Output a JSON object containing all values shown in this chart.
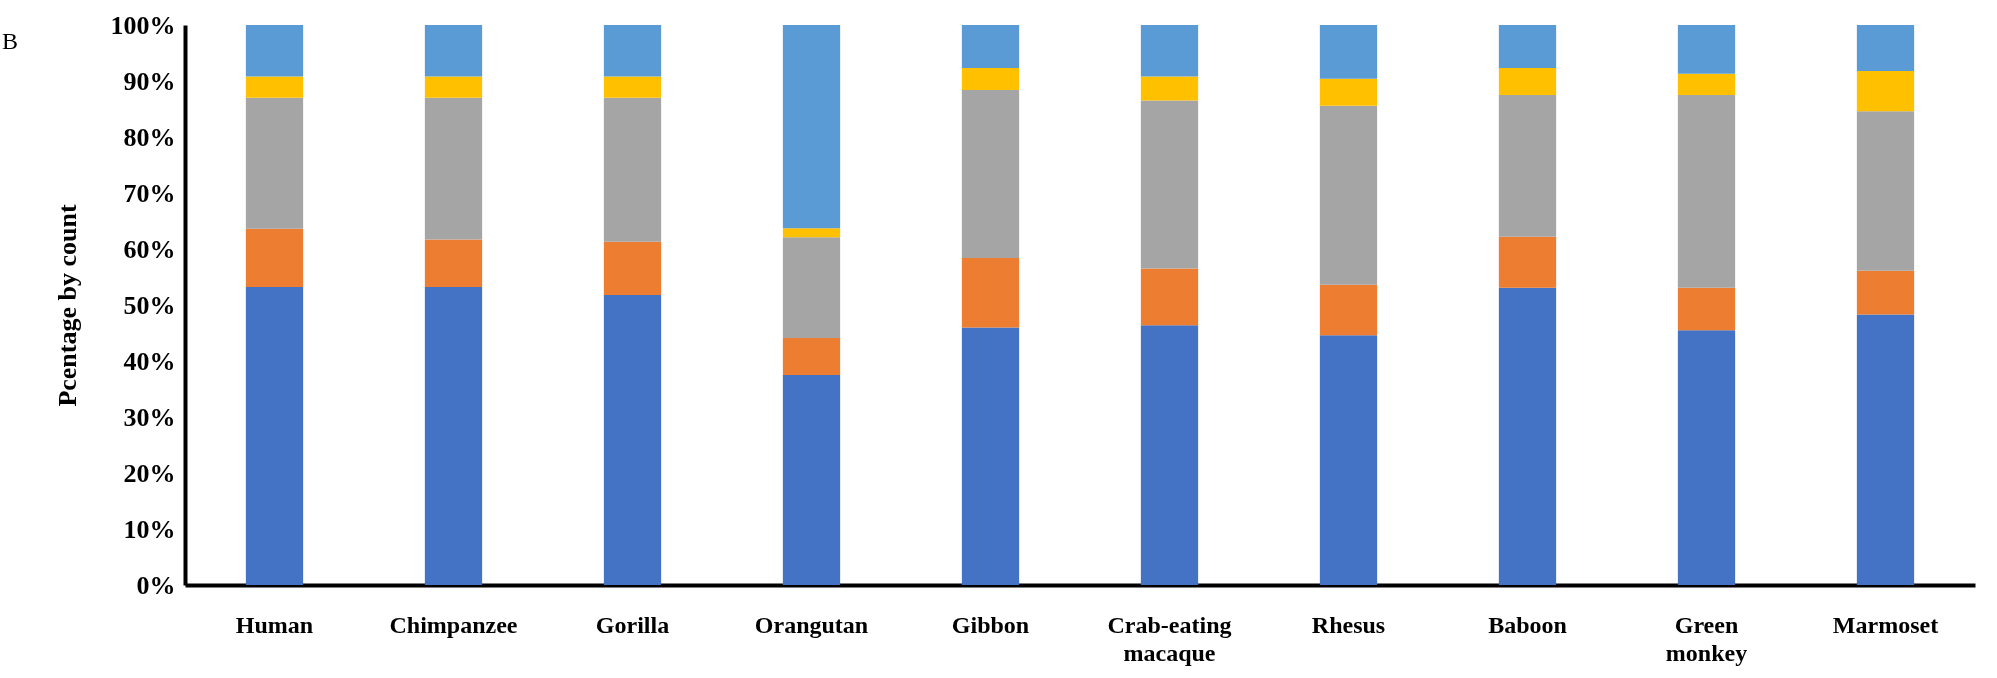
{
  "chart_data": {
    "type": "bar",
    "stacked": true,
    "ylabel": "Pcentage by count",
    "annotations": [
      "B"
    ],
    "categories": [
      "Human",
      "Chimpanzee",
      "Gorilla",
      "Orangutan",
      "Gibbon",
      "Crab-eating macaque",
      "Rhesus",
      "Baboon",
      "Green monkey",
      "Marmoset"
    ],
    "series": [
      {
        "color": "#4472c4",
        "values": [
          53.2,
          53.2,
          51.8,
          37.5,
          46.0,
          46.4,
          44.6,
          53.1,
          45.5,
          48.3
        ]
      },
      {
        "color": "#ed7d31",
        "values": [
          10.4,
          8.5,
          9.5,
          6.6,
          12.4,
          10.1,
          9.0,
          9.1,
          7.6,
          7.8
        ]
      },
      {
        "color": "#a5a5a5",
        "values": [
          23.4,
          25.3,
          25.7,
          18.0,
          30.0,
          30.0,
          32.0,
          25.3,
          34.4,
          28.5
        ]
      },
      {
        "color": "#ffc000",
        "values": [
          3.8,
          3.8,
          3.8,
          1.6,
          3.9,
          4.3,
          4.8,
          4.8,
          3.8,
          7.2
        ]
      },
      {
        "color": "#5b9bd5",
        "values": [
          9.2,
          9.2,
          9.2,
          36.3,
          7.7,
          9.2,
          9.6,
          7.7,
          8.7,
          8.2
        ]
      }
    ],
    "ylim": [
      0,
      100
    ],
    "yticks": [
      {
        "value": 0,
        "label": "0%"
      },
      {
        "value": 10,
        "label": "10%"
      },
      {
        "value": 20,
        "label": "20%"
      },
      {
        "value": 30,
        "label": "30%"
      },
      {
        "value": 40,
        "label": "40%"
      },
      {
        "value": 50,
        "label": "50%"
      },
      {
        "value": 60,
        "label": "60%"
      },
      {
        "value": 70,
        "label": "70%"
      },
      {
        "value": 80,
        "label": "80%"
      },
      {
        "value": 90,
        "label": "90%"
      },
      {
        "value": 100,
        "label": "100%"
      }
    ],
    "grid": false
  }
}
